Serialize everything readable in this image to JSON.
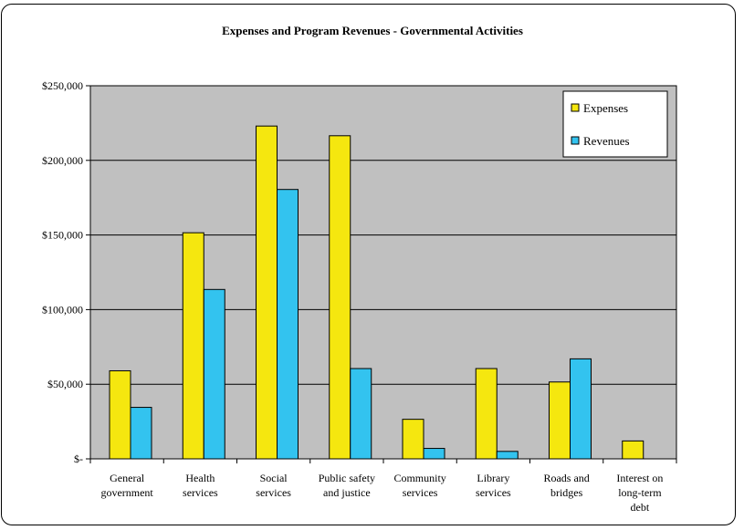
{
  "chart_data": {
    "type": "bar",
    "title": "Expenses and Program Revenues - Governmental Activities",
    "xlabel": "",
    "ylabel": "",
    "ylim": [
      0,
      250000
    ],
    "yticks": [
      0,
      50000,
      100000,
      150000,
      200000,
      250000
    ],
    "ytick_labels": [
      "$-",
      "$50,000",
      "$100,000",
      "$150,000",
      "$200,000",
      "$250,000"
    ],
    "grid": true,
    "legend_position": "top-right",
    "categories": [
      "General government",
      "Health services",
      "Social services",
      "Public safety and justice",
      "Community services",
      "Library services",
      "Roads and bridges",
      "Interest on long-term debt"
    ],
    "category_lines": [
      [
        "General",
        "government"
      ],
      [
        "Health",
        "services"
      ],
      [
        "Social",
        "services"
      ],
      [
        "Public safety",
        "and justice"
      ],
      [
        "Community",
        "services"
      ],
      [
        "Library",
        "services"
      ],
      [
        "Roads and",
        "bridges"
      ],
      [
        "Interest on",
        "long-term",
        "debt"
      ]
    ],
    "series": [
      {
        "name": "Expenses",
        "color": "#f5e70f",
        "values": [
          59000,
          151500,
          223000,
          216500,
          26500,
          60500,
          51500,
          12000
        ]
      },
      {
        "name": "Revenues",
        "color": "#33c3ef",
        "values": [
          34500,
          113500,
          180500,
          60500,
          7000,
          5000,
          67000,
          0
        ]
      }
    ],
    "colors": {
      "plot_background": "#c0c0c0",
      "gridline": "#000000"
    }
  }
}
